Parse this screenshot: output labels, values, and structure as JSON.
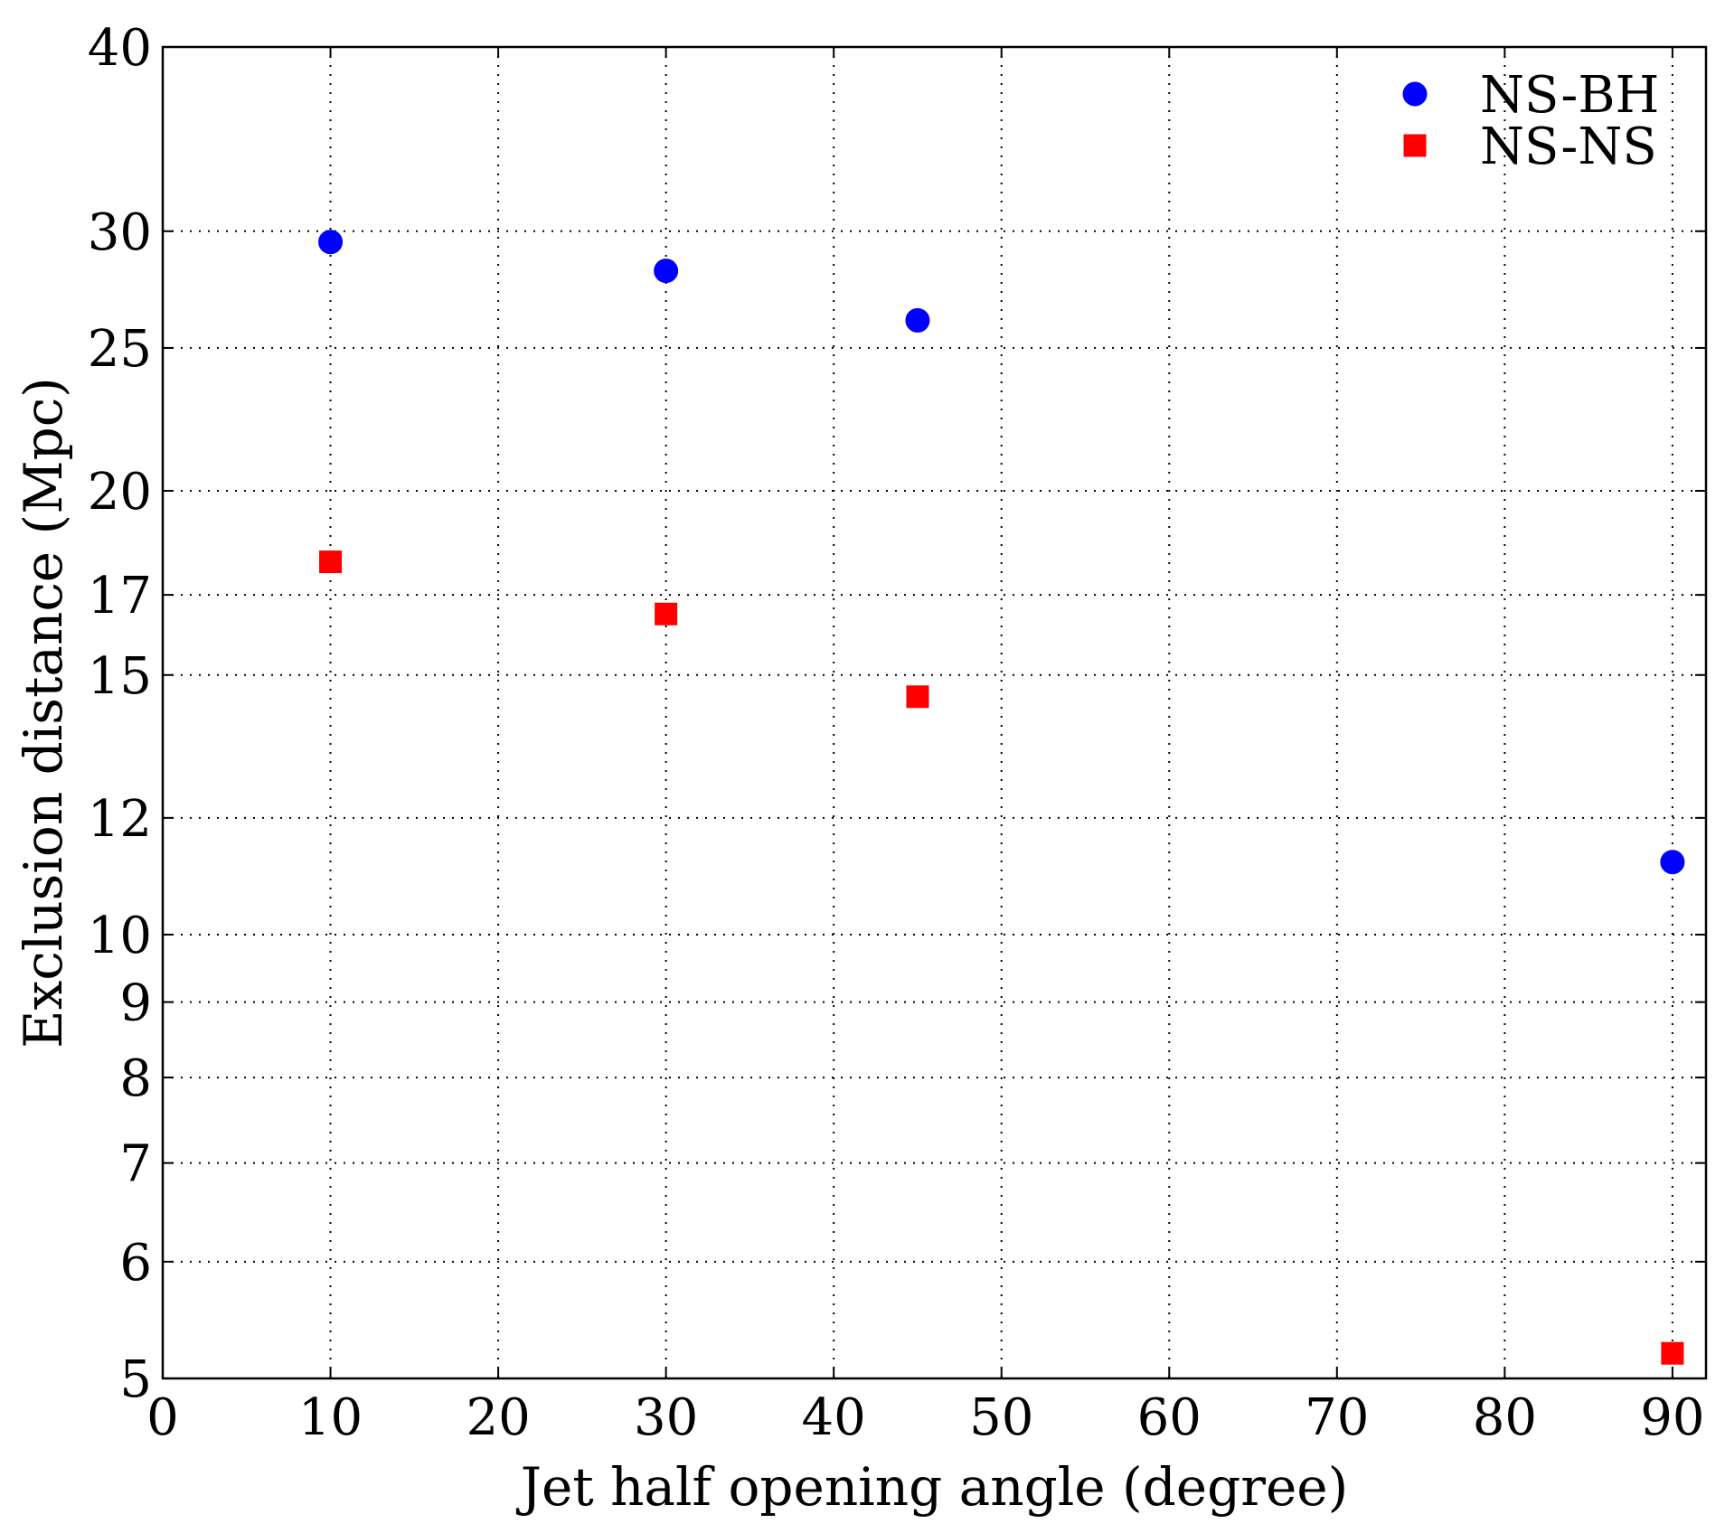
{
  "chart_data": {
    "type": "scatter",
    "title": "",
    "xlabel": "Jet half opening angle (degree)",
    "ylabel": "Exclusion distance (Mpc)",
    "xlim": [
      0,
      92
    ],
    "ylim": [
      5,
      40
    ],
    "y_scale": "log",
    "grid": true,
    "legend_position": "top-right",
    "x_ticks": [
      0,
      10,
      20,
      30,
      40,
      50,
      60,
      70,
      80,
      90
    ],
    "x_tick_labels": [
      "0",
      "10",
      "20",
      "30",
      "40",
      "50",
      "60",
      "70",
      "80",
      "90"
    ],
    "y_ticks": [
      5,
      6,
      7,
      8,
      9,
      10,
      12,
      15,
      17,
      20,
      25,
      30,
      40
    ],
    "y_tick_labels": [
      "5",
      "6",
      "7",
      "8",
      "9",
      "10",
      "12",
      "15",
      "17",
      "20",
      "25",
      "30",
      "40"
    ],
    "series": [
      {
        "name": "NS-BH",
        "marker": "circle",
        "color": "#0000ff",
        "x": [
          10,
          30,
          45,
          90
        ],
        "y": [
          29.5,
          28.2,
          26.1,
          11.2
        ]
      },
      {
        "name": "NS-NS",
        "marker": "square",
        "color": "#ff0000",
        "x": [
          10,
          30,
          45,
          90
        ],
        "y": [
          17.9,
          16.5,
          14.5,
          5.2
        ]
      }
    ]
  }
}
